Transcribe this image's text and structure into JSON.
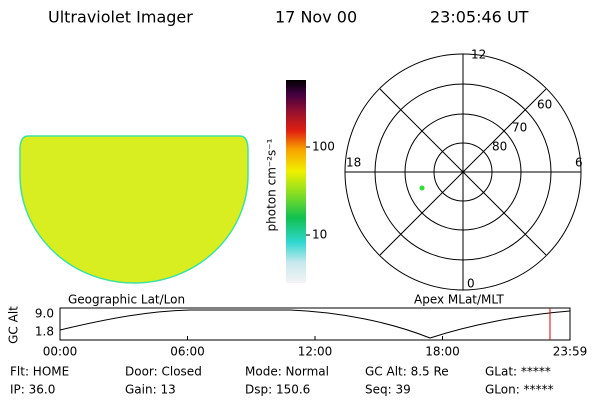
{
  "header": {
    "instrument": "Ultraviolet Imager",
    "date": "17 Nov 00",
    "time": "23:05:46 UT"
  },
  "colorbar": {
    "label": "photon cm⁻²s⁻¹",
    "ticks": [
      "100",
      "10"
    ]
  },
  "polar": {
    "mlt_labels": [
      "12",
      "18",
      "6",
      "0"
    ],
    "mlat_labels": [
      "60",
      "70",
      "80"
    ]
  },
  "panel_labels": {
    "left": "Geographic Lat/Lon",
    "right": "Apex MLat/MLT"
  },
  "altitude_plot": {
    "ylabel": "GC Alt",
    "yticks": [
      "9.0",
      "1.8"
    ],
    "xticks": [
      "00:00",
      "06:00",
      "12:00",
      "18:00",
      "23:59"
    ]
  },
  "status": {
    "rows": [
      [
        "Flt: HOME",
        "Door: Closed",
        "Mode: Normal",
        "GC Alt: 8.5 Re",
        "GLat: *****"
      ],
      [
        "IP: 36.0",
        "Gain: 13",
        "Dsp: 150.6",
        "Seq: 39",
        "GLon: *****"
      ]
    ]
  }
}
